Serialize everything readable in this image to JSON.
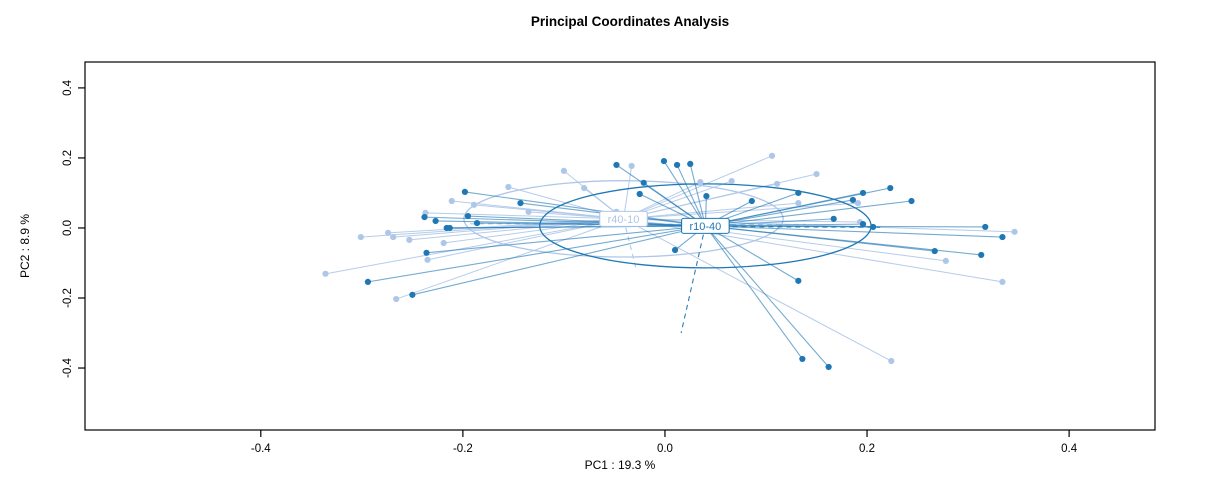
{
  "chart_data": {
    "type": "scatter",
    "subtype": "pcoa-ordination-spider-ellipse",
    "title": "Principal Coordinates Analysis",
    "xlabel": "PC1 :  19.3 %",
    "ylabel": "PC2 :  8.9 %",
    "xticks": [
      -0.4,
      -0.2,
      0.0,
      0.2,
      0.4
    ],
    "yticks": [
      -0.4,
      -0.2,
      0.0,
      0.2,
      0.4
    ],
    "xlim": [
      -0.574,
      0.485
    ],
    "ylim": [
      -0.577,
      0.474
    ],
    "grid": false,
    "legend_position": "none-centroid-labels",
    "frame_color": "#000000",
    "groups": [
      {
        "name": "r40-10",
        "color": "#AEC7E8",
        "centroid": [
          -0.041,
          0.026
        ],
        "ellipse": {
          "rx": 0.158,
          "ry": 0.109
        },
        "dashed_segments": [
          [
            [
              -0.193,
              0.012
            ],
            [
              0.139,
              0.01
            ]
          ],
          [
            [
              -0.041,
              0.026
            ],
            [
              -0.028,
              -0.123
            ]
          ]
        ],
        "points": [
          [
            -0.155,
            0.117
          ],
          [
            -0.211,
            0.077
          ],
          [
            -0.189,
            0.066
          ],
          [
            -0.135,
            0.046
          ],
          [
            -0.237,
            0.043
          ],
          [
            -0.274,
            -0.014
          ],
          [
            -0.269,
            -0.026
          ],
          [
            -0.301,
            -0.026
          ],
          [
            -0.253,
            -0.034
          ],
          [
            -0.219,
            -0.043
          ],
          [
            -0.235,
            -0.091
          ],
          [
            -0.336,
            -0.131
          ],
          [
            -0.266,
            -0.203
          ],
          [
            -0.1,
            0.163
          ],
          [
            -0.033,
            0.177
          ],
          [
            0.035,
            0.131
          ],
          [
            0.066,
            0.134
          ],
          [
            0.106,
            0.206
          ],
          [
            0.111,
            0.126
          ],
          [
            0.15,
            0.154
          ],
          [
            0.132,
            0.071
          ],
          [
            -0.08,
            0.114
          ],
          [
            -0.048,
            0.046
          ],
          [
            0.191,
            0.071
          ],
          [
            0.193,
            0.017
          ],
          [
            0.346,
            -0.011
          ],
          [
            0.278,
            -0.094
          ],
          [
            0.224,
            -0.38
          ],
          [
            0.334,
            -0.154
          ]
        ]
      },
      {
        "name": "r10-40",
        "color": "#1F77B4",
        "centroid": [
          0.04,
          0.006
        ],
        "ellipse": {
          "rx": 0.164,
          "ry": 0.12
        },
        "dashed_segments": [
          [
            [
              0.04,
              0.004
            ],
            [
              0.213,
              0.002
            ]
          ],
          [
            [
              0.04,
              0.006
            ],
            [
              0.016,
              -0.3
            ]
          ]
        ],
        "points": [
          [
            -0.198,
            0.103
          ],
          [
            -0.143,
            0.071
          ],
          [
            -0.238,
            0.031
          ],
          [
            -0.227,
            0.02
          ],
          [
            -0.216,
            0.0
          ],
          [
            -0.213,
            0.0
          ],
          [
            -0.195,
            0.034
          ],
          [
            -0.186,
            0.014
          ],
          [
            -0.236,
            -0.071
          ],
          [
            -0.294,
            -0.154
          ],
          [
            -0.25,
            -0.191
          ],
          [
            -0.048,
            0.18
          ],
          [
            -0.001,
            0.191
          ],
          [
            0.012,
            0.18
          ],
          [
            0.025,
            0.183
          ],
          [
            -0.021,
            0.129
          ],
          [
            -0.025,
            0.097
          ],
          [
            0.041,
            0.091
          ],
          [
            0.086,
            0.077
          ],
          [
            0.132,
            0.1
          ],
          [
            0.01,
            -0.063
          ],
          [
            0.223,
            0.114
          ],
          [
            0.196,
            0.1
          ],
          [
            0.186,
            0.08
          ],
          [
            0.244,
            0.077
          ],
          [
            0.167,
            0.026
          ],
          [
            0.196,
            0.011
          ],
          [
            0.206,
            0.003
          ],
          [
            0.317,
            0.003
          ],
          [
            0.334,
            -0.026
          ],
          [
            0.267,
            -0.066
          ],
          [
            0.313,
            -0.077
          ],
          [
            0.132,
            -0.151
          ],
          [
            0.136,
            -0.374
          ],
          [
            0.162,
            -0.397
          ]
        ]
      }
    ]
  }
}
